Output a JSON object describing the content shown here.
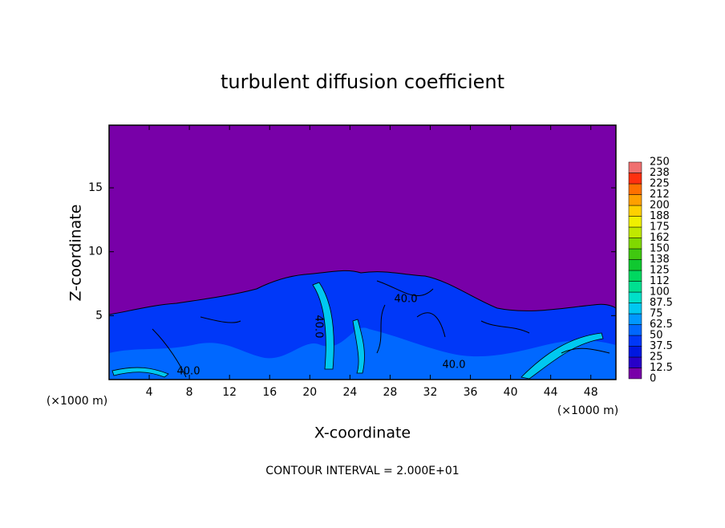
{
  "chart_data": {
    "type": "contour",
    "title": "turbulent diffusion coefficient",
    "x_label": "X-coordinate",
    "y_label": "Z-coordinate",
    "x_unit": "(×1000 m)",
    "y_unit": "(×1000 m)",
    "xlim": [
      0,
      50.5
    ],
    "ylim": [
      0,
      19.9
    ],
    "xticks": [
      4,
      8,
      12,
      16,
      20,
      24,
      28,
      32,
      36,
      40,
      44,
      48
    ],
    "yticks": [
      5,
      10,
      15
    ],
    "contour_labels": [
      "40.0",
      "40.0",
      "40.0",
      "40.0"
    ],
    "footnote": "CONTOUR INTERVAL = 2.000E+01",
    "colorbar": {
      "levels": [
        0,
        12.5,
        25,
        37.5,
        50,
        62.5,
        75,
        87.5,
        100,
        {
          "value": 112.5,
          "label": "112"
        },
        125,
        {
          "value": 137.5,
          "label": "138"
        },
        150,
        {
          "value": 162.5,
          "label": "162"
        },
        175,
        {
          "value": 187.5,
          "label": "188"
        },
        200,
        {
          "value": 212.5,
          "label": "212"
        },
        225,
        {
          "value": 237.5,
          "label": "238"
        },
        250
      ],
      "colors": [
        "#7800a8",
        "#2800c8",
        "#0018e0",
        "#0038f8",
        "#0068ff",
        "#0098ff",
        "#00c8f0",
        "#00e0c8",
        "#00e090",
        "#00d860",
        "#10c830",
        "#40c810",
        "#80d800",
        "#c0e800",
        "#f0f000",
        "#ffd000",
        "#ffa000",
        "#ff7000",
        "#ff3010",
        "#f07070"
      ]
    }
  }
}
